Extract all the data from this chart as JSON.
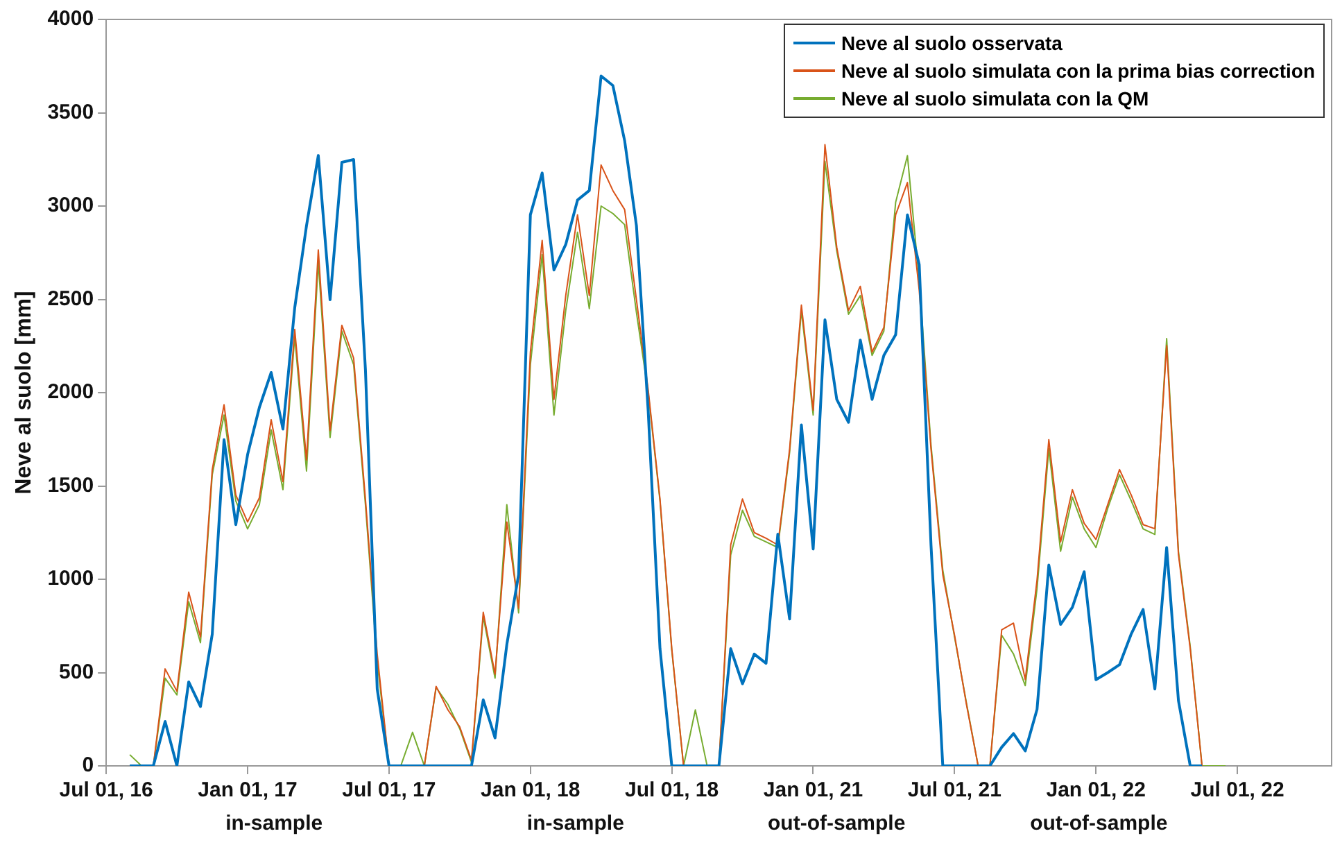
{
  "chart_data": {
    "type": "line",
    "ylabel": "Neve al suolo [mm]",
    "ylim": [
      0,
      4000
    ],
    "categories": [
      "Jul 01, 16",
      null,
      null,
      null,
      null,
      null,
      null,
      null,
      null,
      null,
      null,
      null,
      "Jan 01, 17",
      null,
      null,
      null,
      null,
      null,
      null,
      null,
      null,
      null,
      null,
      null,
      "Jul 01, 17",
      null,
      null,
      null,
      null,
      null,
      null,
      null,
      null,
      null,
      null,
      null,
      "Jan 01, 18",
      null,
      null,
      null,
      null,
      null,
      null,
      null,
      null,
      null,
      null,
      null,
      "Jul 01, 18",
      null,
      null,
      null,
      null,
      null,
      null,
      null,
      null,
      null,
      null,
      null,
      "Jan 01, 21",
      null,
      null,
      null,
      null,
      null,
      null,
      null,
      null,
      null,
      null,
      null,
      "Jul 01, 21",
      null,
      null,
      null,
      null,
      null,
      null,
      null,
      null,
      null,
      null,
      null,
      "Jan 01, 22",
      null,
      null,
      null,
      null,
      null,
      null,
      null,
      null,
      null,
      null,
      null,
      "Jul 01, 22",
      null,
      null,
      null,
      null,
      null,
      null,
      null,
      null
    ],
    "yticks": [
      0,
      500,
      1000,
      1500,
      2000,
      2500,
      3000,
      3500,
      4000
    ],
    "grid": false,
    "legend": "top right",
    "marker": "none",
    "line_style": "solid",
    "annotations": [
      "in-sample",
      "in-sample",
      "out-of-sample",
      "out-of-sample"
    ],
    "series": [
      {
        "name": "Neve al suolo osservata",
        "color": "#0072bd",
        "values": [
          null,
          null,
          0,
          0,
          0,
          238,
          0,
          450,
          318,
          706,
          1748,
          1293,
          1668,
          1921,
          2108,
          1805,
          2455,
          2895,
          3271,
          2498,
          3234,
          3249,
          2123,
          412,
          0,
          0,
          0,
          0,
          0,
          0,
          0,
          0,
          354,
          150,
          650,
          1025,
          2953,
          3177,
          2657,
          2794,
          3032,
          3083,
          3697,
          3646,
          3350,
          2895,
          1900,
          628,
          0,
          0,
          0,
          0,
          0,
          628,
          440,
          599,
          550,
          1242,
          787,
          1827,
          1162,
          2390,
          1964,
          1841,
          2282,
          1964,
          2200,
          2310,
          2953,
          2686,
          1184,
          0,
          0,
          0,
          0,
          0,
          100,
          173,
          80,
          303,
          1076,
          758,
          850,
          1040,
          462,
          500,
          542,
          708,
          838,
          412,
          1170,
          350,
          0,
          0,
          null,
          null,
          null,
          null,
          null,
          null,
          null,
          null,
          null,
          null,
          null
        ]
      },
      {
        "name": "Neve al suolo simulata con la prima bias correction",
        "color": "#d95319",
        "values": [
          null,
          null,
          0,
          0,
          0,
          520,
          400,
          931,
          690,
          1588,
          1935,
          1451,
          1307,
          1437,
          1855,
          1523,
          2339,
          1639,
          2765,
          1798,
          2361,
          2185,
          1430,
          599,
          0,
          0,
          0,
          0,
          426,
          300,
          210,
          30,
          823,
          491,
          1307,
          845,
          2217,
          2816,
          1964,
          2520,
          2953,
          2520,
          3220,
          3083,
          2981,
          2498,
          2014,
          1430,
          628,
          0,
          0,
          0,
          0,
          1184,
          1430,
          1250,
          1220,
          1184,
          1697,
          2469,
          1906,
          3329,
          2780,
          2440,
          2570,
          2217,
          2350,
          2953,
          3126,
          2549,
          1697,
          1025,
          700,
          332,
          0,
          0,
          729,
          765,
          462,
          997,
          1748,
          1200,
          1480,
          1300,
          1213,
          1400,
          1588,
          1450,
          1293,
          1271,
          2253,
          1133,
          628,
          0,
          null,
          null,
          null,
          null,
          null,
          null,
          null,
          null,
          null,
          null,
          null
        ]
      },
      {
        "name": "Neve al suolo simulata con la QM",
        "color": "#77ac30",
        "values": [
          null,
          null,
          60,
          0,
          0,
          470,
          380,
          880,
          660,
          1560,
          1880,
          1420,
          1270,
          1400,
          1800,
          1480,
          2300,
          1580,
          2700,
          1760,
          2330,
          2150,
          1400,
          560,
          0,
          0,
          180,
          0,
          420,
          330,
          200,
          20,
          800,
          470,
          1400,
          820,
          2150,
          2740,
          1880,
          2440,
          2860,
          2450,
          3000,
          2960,
          2900,
          2430,
          2000,
          1420,
          620,
          0,
          300,
          0,
          0,
          1130,
          1370,
          1230,
          1200,
          1170,
          1680,
          2440,
          1880,
          3240,
          2760,
          2420,
          2520,
          2200,
          2330,
          3020,
          3270,
          2600,
          1720,
          1050,
          690,
          340,
          0,
          0,
          700,
          600,
          430,
          950,
          1700,
          1150,
          1440,
          1270,
          1170,
          1380,
          1560,
          1420,
          1270,
          1240,
          2290,
          1150,
          640,
          0,
          0,
          0,
          null,
          null,
          null,
          null,
          null,
          null,
          null,
          null,
          null
        ]
      }
    ]
  }
}
